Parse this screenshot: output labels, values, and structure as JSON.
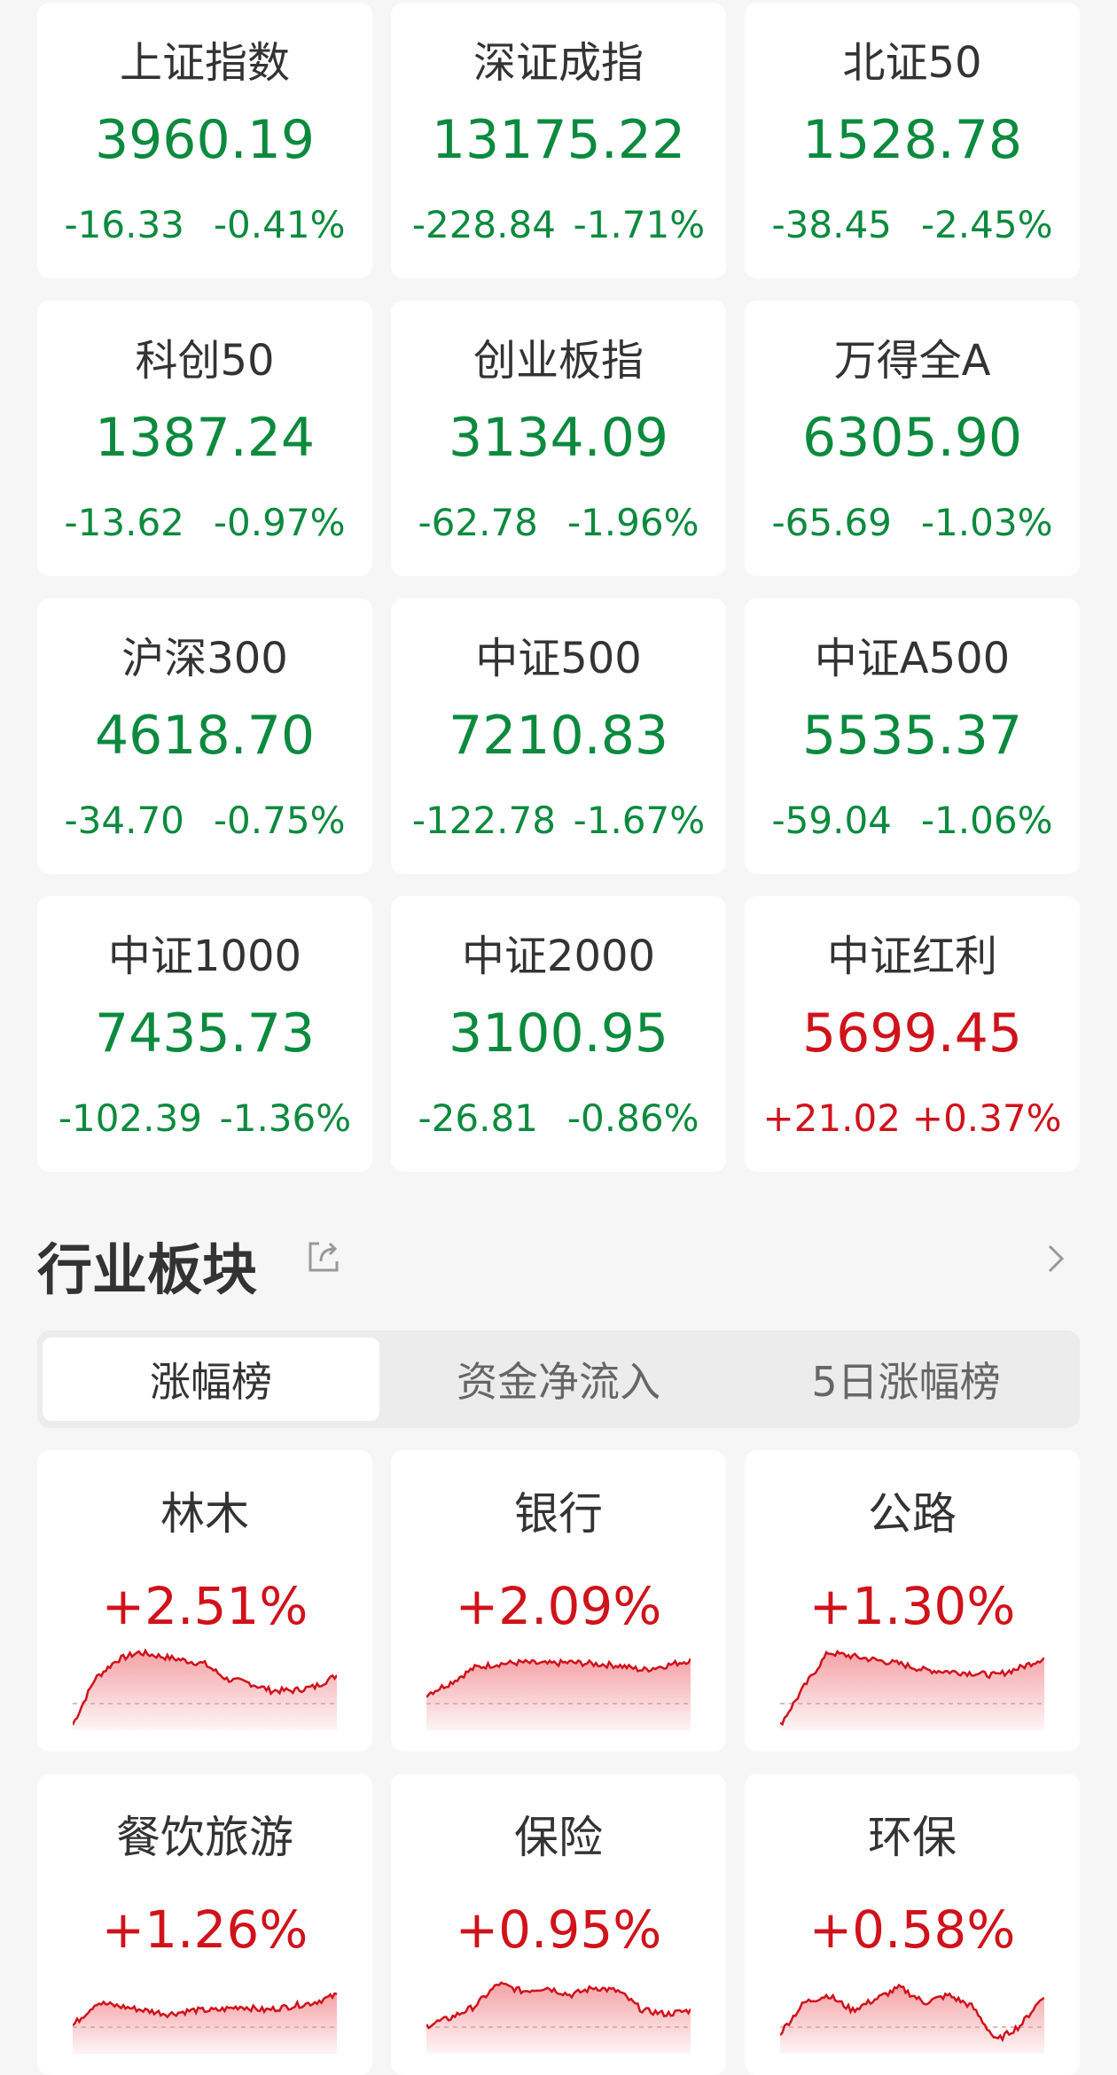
{
  "colors": {
    "down": "#0b8a3e",
    "up": "#d0121b"
  },
  "indices": [
    {
      "name": "上证指数",
      "value": "3960.19",
      "change": "-16.33",
      "pct": "-0.41%",
      "dir": "down"
    },
    {
      "name": "深证成指",
      "value": "13175.22",
      "change": "-228.84",
      "pct": "-1.71%",
      "dir": "down"
    },
    {
      "name": "北证50",
      "value": "1528.78",
      "change": "-38.45",
      "pct": "-2.45%",
      "dir": "down"
    },
    {
      "name": "科创50",
      "value": "1387.24",
      "change": "-13.62",
      "pct": "-0.97%",
      "dir": "down"
    },
    {
      "name": "创业板指",
      "value": "3134.09",
      "change": "-62.78",
      "pct": "-1.96%",
      "dir": "down"
    },
    {
      "name": "万得全A",
      "value": "6305.90",
      "change": "-65.69",
      "pct": "-1.03%",
      "dir": "down"
    },
    {
      "name": "沪深300",
      "value": "4618.70",
      "change": "-34.70",
      "pct": "-0.75%",
      "dir": "down"
    },
    {
      "name": "中证500",
      "value": "7210.83",
      "change": "-122.78",
      "pct": "-1.67%",
      "dir": "down"
    },
    {
      "name": "中证A500",
      "value": "5535.37",
      "change": "-59.04",
      "pct": "-1.06%",
      "dir": "down"
    },
    {
      "name": "中证1000",
      "value": "7435.73",
      "change": "-102.39",
      "pct": "-1.36%",
      "dir": "down"
    },
    {
      "name": "中证2000",
      "value": "3100.95",
      "change": "-26.81",
      "pct": "-0.86%",
      "dir": "down"
    },
    {
      "name": "中证红利",
      "value": "5699.45",
      "change": "+21.02",
      "pct": "+0.37%",
      "dir": "up"
    }
  ],
  "sector": {
    "title": "行业板块",
    "share_icon": "share-icon",
    "more_icon": "chevron-right-icon",
    "tabs": [
      {
        "label": "涨幅榜",
        "active": true
      },
      {
        "label": "资金净流入"
      },
      {
        "label": "5日涨幅榜"
      }
    ],
    "items": [
      {
        "name": "林木",
        "pct": "+2.51%",
        "trend": [
          0,
          0.6,
          0.85,
          0.95,
          0.9,
          0.85,
          0.8,
          0.6,
          0.55,
          0.45,
          0.45,
          0.5,
          0.65
        ]
      },
      {
        "name": "银行",
        "pct": "+2.09%",
        "trend": [
          0.4,
          0.55,
          0.75,
          0.8,
          0.82,
          0.8,
          0.82,
          0.8,
          0.78,
          0.72,
          0.78,
          0.85
        ]
      },
      {
        "name": "公路",
        "pct": "+1.30%",
        "trend": [
          0,
          0.5,
          0.95,
          0.9,
          0.85,
          0.8,
          0.72,
          0.7,
          0.68,
          0.65,
          0.75,
          0.88
        ]
      },
      {
        "name": "餐饮旅游",
        "pct": "+1.26%",
        "trend": [
          0.3,
          0.6,
          0.55,
          0.5,
          0.45,
          0.5,
          0.5,
          0.55,
          0.5,
          0.55,
          0.6,
          0.7
        ]
      },
      {
        "name": "保险",
        "pct": "+0.95%",
        "trend": [
          0.3,
          0.4,
          0.55,
          0.85,
          0.75,
          0.8,
          0.7,
          0.8,
          0.75,
          0.5,
          0.45,
          0.5
        ]
      },
      {
        "name": "环保",
        "pct": "+0.58%",
        "trend": [
          0.2,
          0.6,
          0.7,
          0.5,
          0.65,
          0.8,
          0.6,
          0.7,
          0.55,
          0.1,
          0.3,
          0.7
        ]
      }
    ]
  }
}
